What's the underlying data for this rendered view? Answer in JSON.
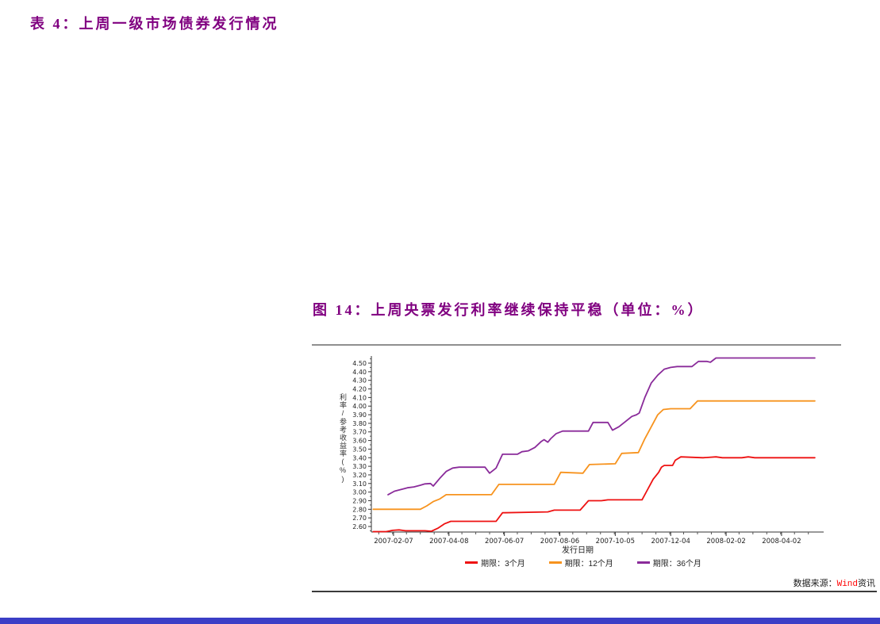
{
  "page": {
    "table_caption": "表 4：上周一级市场债券发行情况",
    "figure_caption": "图 14：上周央票发行利率继续保持平稳（单位：%）",
    "source_label": "数据来源：",
    "source_brand": "Wind",
    "source_suffix": "资讯",
    "caption_color": "#800080",
    "brand_red": "#ff0000",
    "bottom_bar_color": "#3b3ec6"
  },
  "chart_data": {
    "type": "line",
    "title": "上周央票发行利率继续保持平稳",
    "unit": "%",
    "xlabel": "发行日期",
    "ylabel": "利率/参考收益率(%)",
    "ylim": [
      2.6,
      4.5
    ],
    "ytick_step": 0.1,
    "grid": false,
    "legend_position": "bottom",
    "x_domain": [
      "2007-01-14",
      "2008-05-15"
    ],
    "xticks": [
      "2007-02-07",
      "2007-04-08",
      "2007-06-07",
      "2007-08-06",
      "2007-10-05",
      "2007-12-04",
      "2008-02-02",
      "2008-04-02"
    ],
    "series": [
      {
        "name": "期限：3个月",
        "color": "#ee1111",
        "points": [
          [
            "2007-01-16",
            2.54
          ],
          [
            "2007-01-30",
            2.54
          ],
          [
            "2007-02-06",
            2.555
          ],
          [
            "2007-02-13",
            2.56
          ],
          [
            "2007-02-20",
            2.55
          ],
          [
            "2007-03-13",
            2.55
          ],
          [
            "2007-03-20",
            2.545
          ],
          [
            "2007-03-27",
            2.58
          ],
          [
            "2007-04-03",
            2.63
          ],
          [
            "2007-04-10",
            2.66
          ],
          [
            "2007-05-29",
            2.66
          ],
          [
            "2007-06-05",
            2.76
          ],
          [
            "2007-07-24",
            2.77
          ],
          [
            "2007-07-31",
            2.79
          ],
          [
            "2007-08-28",
            2.79
          ],
          [
            "2007-09-06",
            2.9
          ],
          [
            "2007-09-20",
            2.9
          ],
          [
            "2007-09-27",
            2.91
          ],
          [
            "2007-11-03",
            2.91
          ],
          [
            "2007-11-08",
            3.01
          ],
          [
            "2007-11-15",
            3.15
          ],
          [
            "2007-11-21",
            3.23
          ],
          [
            "2007-11-24",
            3.29
          ],
          [
            "2007-11-27",
            3.31
          ],
          [
            "2007-12-06",
            3.31
          ],
          [
            "2007-12-09",
            3.37
          ],
          [
            "2007-12-15",
            3.41
          ],
          [
            "2008-01-08",
            3.4
          ],
          [
            "2008-01-22",
            3.41
          ],
          [
            "2008-01-29",
            3.4
          ],
          [
            "2008-02-19",
            3.4
          ],
          [
            "2008-02-26",
            3.41
          ],
          [
            "2008-03-04",
            3.4
          ],
          [
            "2008-05-08",
            3.4
          ]
        ]
      },
      {
        "name": "期限：12个月",
        "color": "#f7931e",
        "points": [
          [
            "2007-01-16",
            2.8
          ],
          [
            "2007-03-08",
            2.8
          ],
          [
            "2007-03-15",
            2.84
          ],
          [
            "2007-03-22",
            2.89
          ],
          [
            "2007-03-29",
            2.92
          ],
          [
            "2007-04-05",
            2.97
          ],
          [
            "2007-05-24",
            2.97
          ],
          [
            "2007-06-01",
            3.09
          ],
          [
            "2007-07-31",
            3.09
          ],
          [
            "2007-08-07",
            3.23
          ],
          [
            "2007-08-31",
            3.22
          ],
          [
            "2007-09-07",
            3.32
          ],
          [
            "2007-10-05",
            3.33
          ],
          [
            "2007-10-12",
            3.45
          ],
          [
            "2007-10-30",
            3.46
          ],
          [
            "2007-11-06",
            3.62
          ],
          [
            "2007-11-13",
            3.76
          ],
          [
            "2007-11-20",
            3.9
          ],
          [
            "2007-11-26",
            3.96
          ],
          [
            "2007-12-04",
            3.97
          ],
          [
            "2007-12-25",
            3.97
          ],
          [
            "2008-01-02",
            4.06
          ],
          [
            "2008-05-08",
            4.06
          ]
        ]
      },
      {
        "name": "期限：36个月",
        "color": "#8a2b9a",
        "points": [
          [
            "2007-02-01",
            2.97
          ],
          [
            "2007-02-08",
            3.01
          ],
          [
            "2007-02-15",
            3.03
          ],
          [
            "2007-02-22",
            3.05
          ],
          [
            "2007-03-01",
            3.06
          ],
          [
            "2007-03-08",
            3.08
          ],
          [
            "2007-03-13",
            3.095
          ],
          [
            "2007-03-19",
            3.1
          ],
          [
            "2007-03-22",
            3.07
          ],
          [
            "2007-03-29",
            3.16
          ],
          [
            "2007-04-05",
            3.24
          ],
          [
            "2007-04-12",
            3.28
          ],
          [
            "2007-04-19",
            3.29
          ],
          [
            "2007-05-17",
            3.29
          ],
          [
            "2007-05-22",
            3.22
          ],
          [
            "2007-05-29",
            3.28
          ],
          [
            "2007-06-05",
            3.44
          ],
          [
            "2007-06-21",
            3.44
          ],
          [
            "2007-06-26",
            3.47
          ],
          [
            "2007-07-03",
            3.48
          ],
          [
            "2007-07-10",
            3.52
          ],
          [
            "2007-07-17",
            3.59
          ],
          [
            "2007-07-20",
            3.61
          ],
          [
            "2007-07-24",
            3.58
          ],
          [
            "2007-07-27",
            3.62
          ],
          [
            "2007-08-02",
            3.68
          ],
          [
            "2007-08-09",
            3.71
          ],
          [
            "2007-09-06",
            3.71
          ],
          [
            "2007-09-11",
            3.81
          ],
          [
            "2007-09-27",
            3.81
          ],
          [
            "2007-10-02",
            3.72
          ],
          [
            "2007-10-09",
            3.76
          ],
          [
            "2007-10-16",
            3.82
          ],
          [
            "2007-10-23",
            3.88
          ],
          [
            "2007-10-28",
            3.9
          ],
          [
            "2007-10-31",
            3.92
          ],
          [
            "2007-11-06",
            4.1
          ],
          [
            "2007-11-13",
            4.27
          ],
          [
            "2007-11-20",
            4.36
          ],
          [
            "2007-11-27",
            4.43
          ],
          [
            "2007-12-04",
            4.45
          ],
          [
            "2007-12-11",
            4.46
          ],
          [
            "2007-12-27",
            4.46
          ],
          [
            "2008-01-03",
            4.52
          ],
          [
            "2008-01-12",
            4.52
          ],
          [
            "2008-01-16",
            4.51
          ],
          [
            "2008-01-22",
            4.56
          ],
          [
            "2008-05-08",
            4.56
          ]
        ]
      }
    ]
  }
}
